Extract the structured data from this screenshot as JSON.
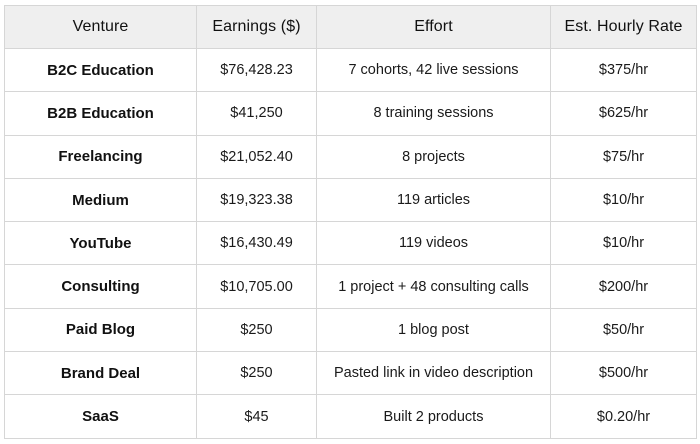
{
  "table": {
    "headers": [
      "Venture",
      "Earnings ($)",
      "Effort",
      "Est. Hourly Rate"
    ],
    "rows": [
      {
        "venture": "B2C Education",
        "earnings": "$76,428.23",
        "effort": "7 cohorts, 42 live sessions",
        "rate": "$375/hr"
      },
      {
        "venture": "B2B Education",
        "earnings": "$41,250",
        "effort": "8 training sessions",
        "rate": "$625/hr"
      },
      {
        "venture": "Freelancing",
        "earnings": "$21,052.40",
        "effort": "8 projects",
        "rate": "$75/hr"
      },
      {
        "venture": "Medium",
        "earnings": "$19,323.38",
        "effort": "119 articles",
        "rate": "$10/hr"
      },
      {
        "venture": "YouTube",
        "earnings": "$16,430.49",
        "effort": "119 videos",
        "rate": "$10/hr"
      },
      {
        "venture": "Consulting",
        "earnings": "$10,705.00",
        "effort": "1 project + 48 consulting calls",
        "rate": "$200/hr"
      },
      {
        "venture": "Paid Blog",
        "earnings": "$250",
        "effort": "1 blog post",
        "rate": "$50/hr"
      },
      {
        "venture": "Brand Deal",
        "earnings": "$250",
        "effort": "Pasted link in video description",
        "rate": "$500/hr"
      },
      {
        "venture": "SaaS",
        "earnings": "$45",
        "effort": "Built 2 products",
        "rate": "$0.20/hr"
      }
    ]
  }
}
